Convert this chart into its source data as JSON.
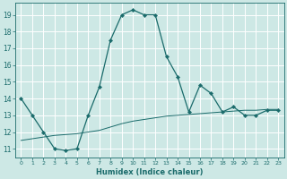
{
  "xlabel": "Humidex (Indice chaleur)",
  "xlim": [
    -0.5,
    23.5
  ],
  "ylim": [
    10.5,
    19.7
  ],
  "yticks": [
    11,
    12,
    13,
    14,
    15,
    16,
    17,
    18,
    19
  ],
  "xticks": [
    0,
    1,
    2,
    3,
    4,
    5,
    6,
    7,
    8,
    9,
    10,
    11,
    12,
    13,
    14,
    15,
    16,
    17,
    18,
    19,
    20,
    21,
    22,
    23
  ],
  "bg_color": "#cde8e5",
  "line_color": "#1a6b6b",
  "grid_color": "#ffffff",
  "series1_x": [
    0,
    1,
    2,
    3,
    4,
    5,
    6,
    7,
    8,
    9,
    10,
    11,
    12,
    13,
    14,
    15,
    16,
    17,
    18,
    19,
    20,
    21,
    22,
    23
  ],
  "series1_y": [
    14.0,
    13.0,
    12.0,
    11.0,
    10.9,
    11.0,
    13.0,
    14.7,
    17.5,
    19.0,
    19.3,
    19.0,
    19.0,
    16.5,
    15.3,
    13.2,
    14.8,
    14.3,
    13.2,
    13.5,
    13.0,
    13.0,
    13.3,
    13.3
  ],
  "series2_x": [
    0,
    1,
    2,
    3,
    4,
    5,
    6,
    7,
    8,
    9,
    10,
    11,
    12,
    13,
    14,
    15,
    16,
    17,
    18,
    19,
    20,
    21,
    22,
    23
  ],
  "series2_y": [
    11.5,
    11.6,
    11.7,
    11.8,
    11.85,
    11.9,
    12.0,
    12.1,
    12.3,
    12.5,
    12.65,
    12.75,
    12.85,
    12.95,
    13.0,
    13.05,
    13.1,
    13.15,
    13.2,
    13.25,
    13.3,
    13.3,
    13.35,
    13.35
  ]
}
